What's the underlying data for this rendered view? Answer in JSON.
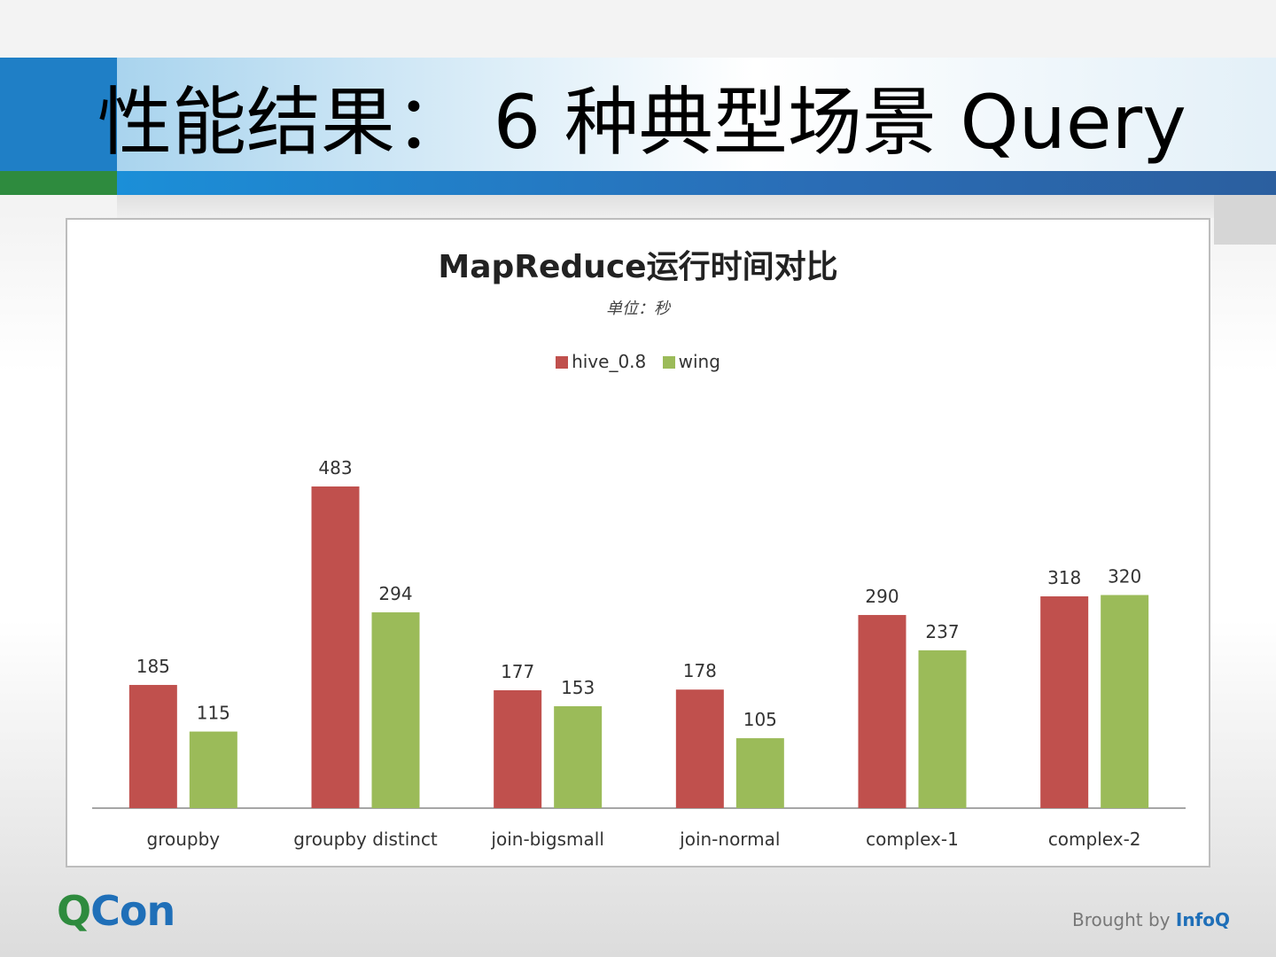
{
  "slide": {
    "title": "性能结果： 6 种典型场景 Query"
  },
  "colors": {
    "hive": "#c0504d",
    "wing": "#9bbb59",
    "axis": "#a6a6a6"
  },
  "chart_data": {
    "type": "bar",
    "title": "MapReduce运行时间对比",
    "subtitle": "单位：秒",
    "categories": [
      "groupby",
      "groupby distinct",
      "join-bigsmall",
      "join-normal",
      "complex-1",
      "complex-2"
    ],
    "series": [
      {
        "name": "hive_0.8",
        "values": [
          185,
          483,
          177,
          178,
          290,
          318
        ]
      },
      {
        "name": "wing",
        "values": [
          115,
          294,
          153,
          105,
          237,
          320
        ]
      }
    ],
    "legend_position": "top",
    "grid": false,
    "ylim": [
      0,
      483
    ]
  },
  "footer": {
    "logo_q": "Q",
    "logo_con": "Con",
    "brought_by": "Brought by ",
    "brand": "InfoQ"
  }
}
